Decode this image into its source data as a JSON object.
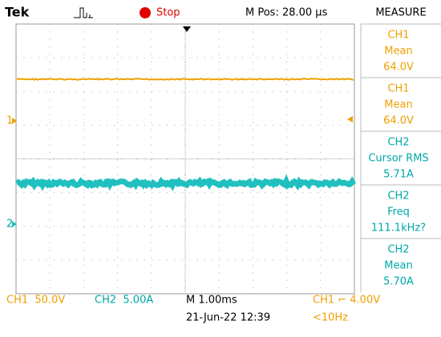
{
  "header": {
    "brand": "Tek",
    "status": "Stop",
    "position": "M Pos: 28.00 µs",
    "panel_title": "MEASURE"
  },
  "measurements": [
    {
      "channel": "CH1",
      "label": "Mean",
      "value": "64.0V"
    },
    {
      "channel": "CH1",
      "label": "Mean",
      "value": "64.0V"
    },
    {
      "channel": "CH2",
      "label": "Cursor RMS",
      "value": "5.71A"
    },
    {
      "channel": "CH2",
      "label": "Freq",
      "value": "111.1kHz?"
    },
    {
      "channel": "CH2",
      "label": "Mean",
      "value": "5.70A"
    }
  ],
  "markers": {
    "ch1": "1",
    "ch2": "2"
  },
  "footer": {
    "ch1_scale": "CH1  50.0V",
    "ch2_scale": "CH2  5.00A",
    "timebase": "M 1.00ms",
    "datetime": "21-Jun-22 12:39",
    "trigger": "CH1 ⌐ 4.00V",
    "trigger_freq": "<10Hz"
  }
}
